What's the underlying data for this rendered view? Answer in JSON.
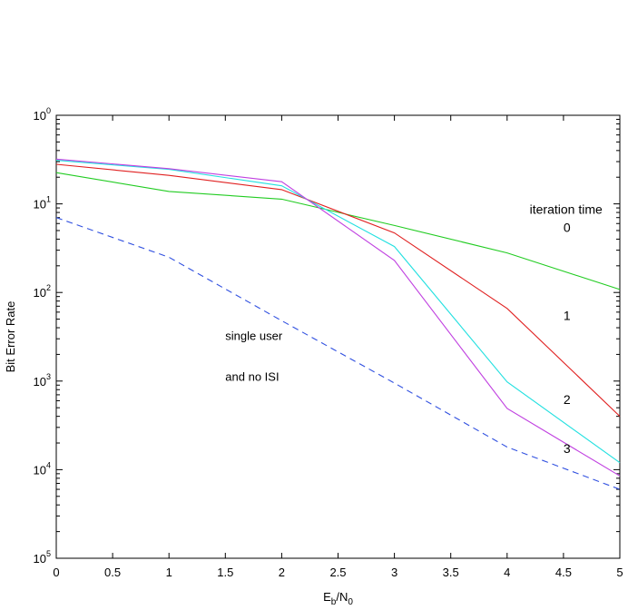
{
  "chart_data": {
    "type": "line",
    "xlabel": "E_b/N_0",
    "xlabel_parts": {
      "main": "E",
      "sub1": "b",
      "sep": "/N",
      "sub2": "0"
    },
    "ylabel": "Bit Error Rate",
    "xlim": [
      0,
      5
    ],
    "ylim": [
      1e-05,
      1
    ],
    "yscale": "log",
    "grid": false,
    "x_ticks": [
      "0",
      "0.5",
      "1",
      "1.5",
      "2",
      "2.5",
      "3",
      "3.5",
      "4",
      "4.5",
      "5"
    ],
    "y_ticks": [
      {
        "value": 1,
        "base": "10",
        "exp": "0"
      },
      {
        "value": 0.1,
        "base": "10",
        "exp": "1"
      },
      {
        "value": 0.01,
        "base": "10",
        "exp": "2"
      },
      {
        "value": 0.001,
        "base": "10",
        "exp": "3"
      },
      {
        "value": 0.0001,
        "base": "10",
        "exp": "4"
      },
      {
        "value": 1e-05,
        "base": "10",
        "exp": "5"
      }
    ],
    "series": [
      {
        "label": "0",
        "color": "#22cc22",
        "dashed": false,
        "x": [
          0,
          1,
          2,
          3,
          4,
          5
        ],
        "y": [
          0.225,
          0.138,
          0.113,
          0.057,
          0.028,
          0.0108
        ]
      },
      {
        "label": "1",
        "color": "#e02020",
        "dashed": false,
        "x": [
          0,
          1,
          2,
          3,
          4,
          5
        ],
        "y": [
          0.28,
          0.21,
          0.145,
          0.047,
          0.0066,
          0.0004
        ]
      },
      {
        "label": "2",
        "color": "#22e0e0",
        "dashed": false,
        "x": [
          0,
          1,
          2,
          3,
          4,
          5
        ],
        "y": [
          0.31,
          0.245,
          0.16,
          0.033,
          0.00098,
          0.00012
        ]
      },
      {
        "label": "3",
        "color": "#c040e0",
        "dashed": false,
        "x": [
          0,
          1,
          2,
          3,
          4,
          5
        ],
        "y": [
          0.32,
          0.25,
          0.178,
          0.023,
          0.00049,
          8.5e-05
        ]
      },
      {
        "label": "single user and no ISI",
        "color": "#3050e0",
        "dashed": true,
        "x": [
          0,
          1,
          2,
          3,
          4,
          5
        ],
        "y": [
          0.07,
          0.025,
          0.0048,
          0.00095,
          0.00018,
          6e-05
        ]
      }
    ],
    "annotations": {
      "header": "iteration time",
      "labels": [
        {
          "text": "0",
          "x": 4.5,
          "y": 0.048
        },
        {
          "text": "1",
          "x": 4.5,
          "y": 0.0049
        },
        {
          "text": "2",
          "x": 4.5,
          "y": 0.00055
        },
        {
          "text": "3",
          "x": 4.5,
          "y": 0.000155
        }
      ],
      "header_pos": {
        "x": 4.2,
        "y": 0.077
      },
      "single_user": [
        {
          "text": "single user",
          "x": 1.5,
          "y": 0.0029
        },
        {
          "text": "and no ISI",
          "x": 1.5,
          "y": 0.00101
        }
      ]
    }
  }
}
